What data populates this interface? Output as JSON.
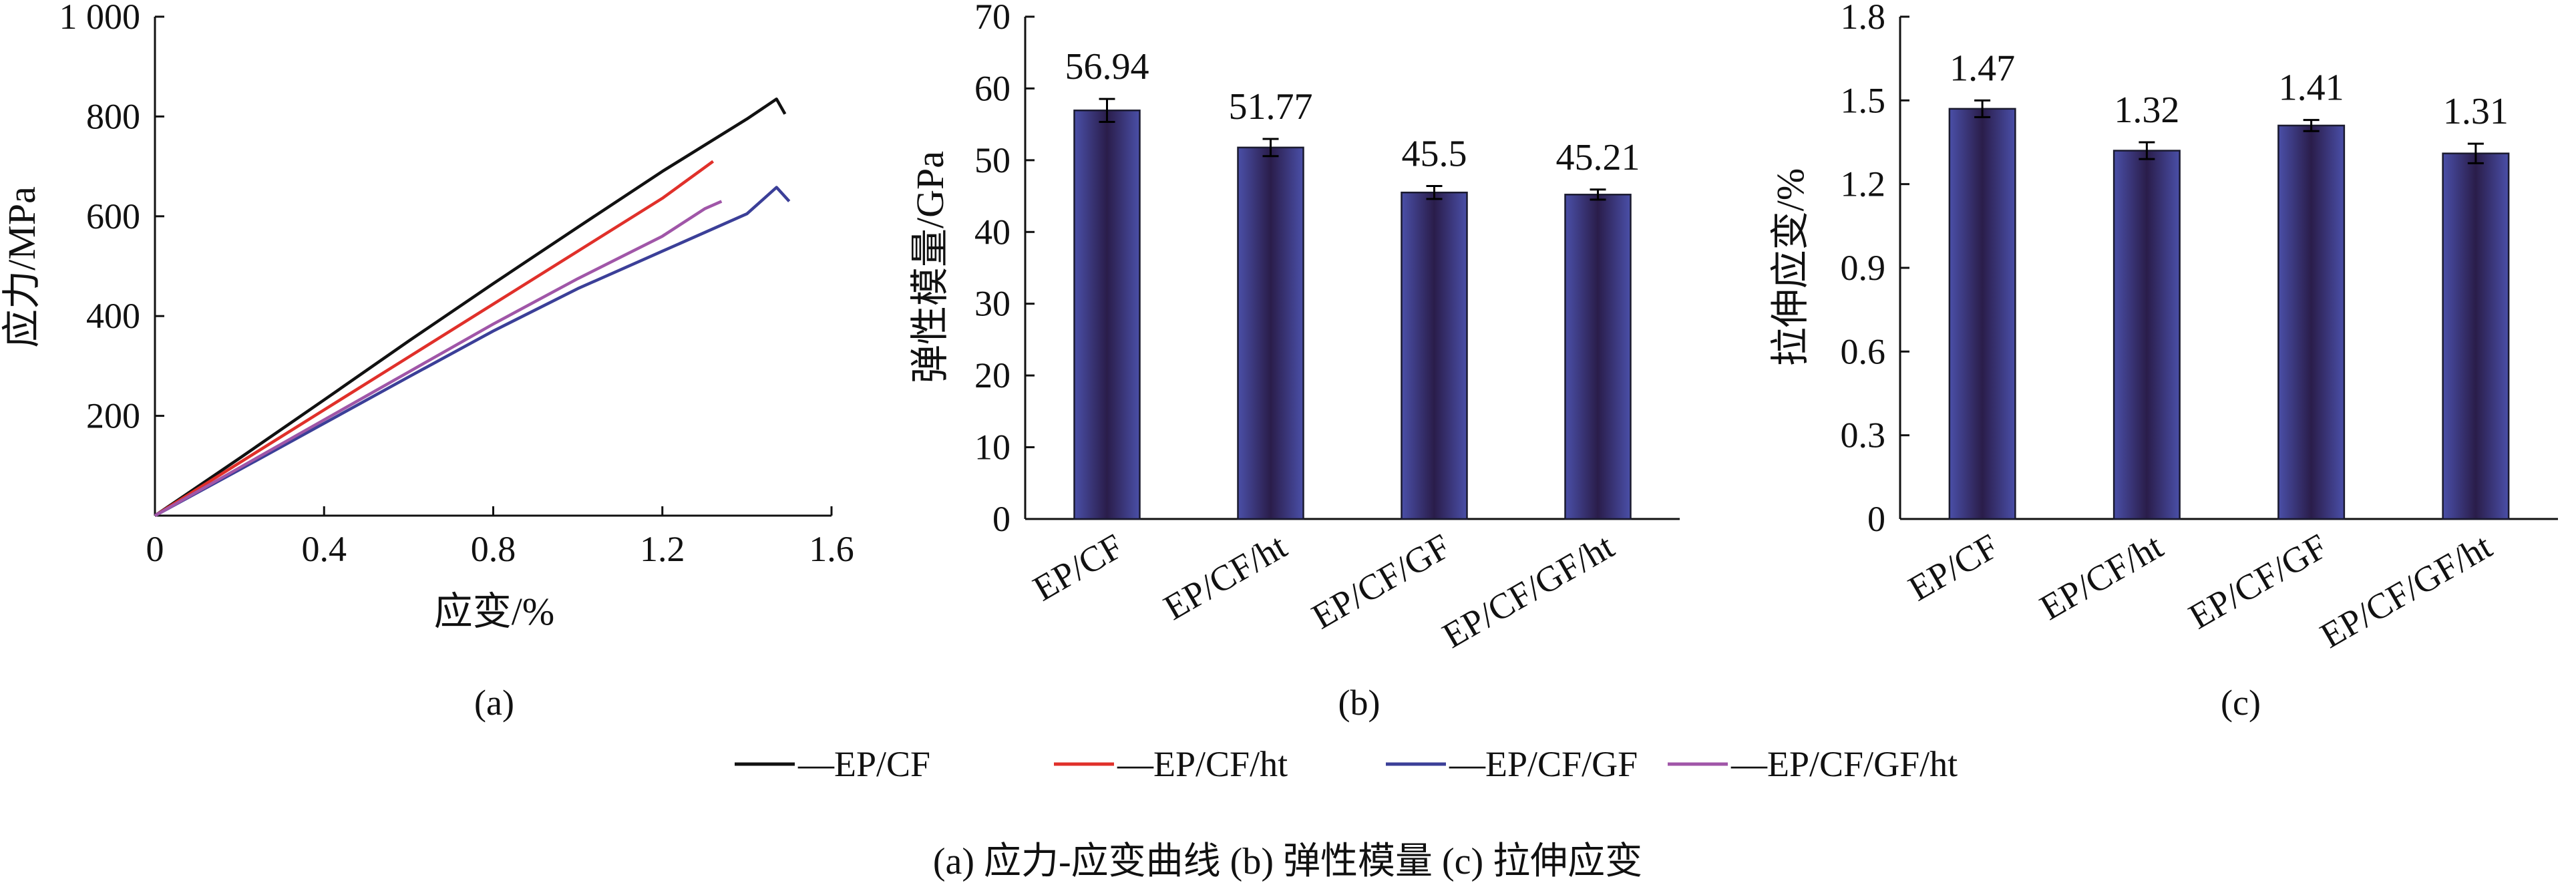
{
  "chart_data": [
    {
      "type": "line",
      "panel_label": "(a)",
      "xlabel": "应变/%",
      "ylabel": "应力/MPa",
      "xlim": [
        0,
        1.6
      ],
      "ylim": [
        0,
        1000
      ],
      "xticks": [
        0,
        0.4,
        0.8,
        1.2,
        1.6
      ],
      "xtick_labels": [
        "0",
        "0.4",
        "0.8",
        "1.2",
        "1.6"
      ],
      "yticks": [
        200,
        400,
        600,
        800,
        1000
      ],
      "ytick_labels": [
        "200",
        "400",
        "600",
        "800",
        "1 000"
      ],
      "grid": false,
      "series": [
        {
          "name": "—EP/CF",
          "color": "#111111",
          "x": [
            0,
            0.2,
            0.4,
            0.6,
            0.8,
            1.0,
            1.2,
            1.4,
            1.47,
            1.49
          ],
          "y": [
            0,
            115,
            232,
            350,
            465,
            578,
            690,
            795,
            835,
            805
          ]
        },
        {
          "name": "—EP/CF/ht",
          "color": "#e0302a",
          "x": [
            0,
            0.2,
            0.4,
            0.6,
            0.8,
            1.0,
            1.2,
            1.32
          ],
          "y": [
            0,
            106,
            212,
            318,
            424,
            530,
            636,
            710
          ]
        },
        {
          "name": "—EP/CF/GF",
          "color": "#3b3f98",
          "x": [
            0,
            0.2,
            0.4,
            0.6,
            0.8,
            1.0,
            1.2,
            1.4,
            1.47,
            1.5
          ],
          "y": [
            0,
            92,
            185,
            278,
            370,
            455,
            530,
            605,
            658,
            630
          ]
        },
        {
          "name": "—EP/CF/GF/ht",
          "color": "#a056a8",
          "x": [
            0,
            0.2,
            0.4,
            0.6,
            0.8,
            1.0,
            1.2,
            1.3,
            1.34
          ],
          "y": [
            0,
            96,
            192,
            288,
            384,
            475,
            560,
            615,
            630
          ]
        }
      ]
    },
    {
      "type": "bar",
      "panel_label": "(b)",
      "xlabel": "",
      "ylabel": "弹性模量/GPa",
      "ylim": [
        0,
        70
      ],
      "yticks": [
        0,
        10,
        20,
        30,
        40,
        50,
        60,
        70
      ],
      "ytick_labels": [
        "0",
        "10",
        "20",
        "30",
        "40",
        "50",
        "60",
        "70"
      ],
      "categories": [
        "EP/CF",
        "EP/CF/ht",
        "EP/CF/GF",
        "EP/CF/GF/ht"
      ],
      "values": [
        56.94,
        51.77,
        45.5,
        45.21
      ],
      "value_labels": [
        "56.94",
        "51.77",
        "45.5",
        "45.21"
      ],
      "errors": [
        1.6,
        1.2,
        0.9,
        0.7
      ],
      "grid": false
    },
    {
      "type": "bar",
      "panel_label": "(c)",
      "xlabel": "",
      "ylabel": "拉伸应变/%",
      "ylim": [
        0,
        1.8
      ],
      "yticks": [
        0,
        0.3,
        0.6,
        0.9,
        1.2,
        1.5,
        1.8
      ],
      "ytick_labels": [
        "0",
        "0.3",
        "0.6",
        "0.9",
        "1.2",
        "1.5",
        "1.8"
      ],
      "categories": [
        "EP/CF",
        "EP/CF/ht",
        "EP/CF/GF",
        "EP/CF/GF/ht"
      ],
      "values": [
        1.47,
        1.32,
        1.41,
        1.31
      ],
      "value_labels": [
        "1.47",
        "1.32",
        "1.41",
        "1.31"
      ],
      "errors": [
        0.03,
        0.03,
        0.02,
        0.035
      ],
      "grid": false
    }
  ],
  "legend": {
    "placement": "bottom",
    "entries": [
      {
        "label": "—EP/CF",
        "color": "#111111"
      },
      {
        "label": "—EP/CF/ht",
        "color": "#e0302a"
      },
      {
        "label": "—EP/CF/GF",
        "color": "#3b3f98"
      },
      {
        "label": "—EP/CF/GF/ht",
        "color": "#a056a8"
      }
    ]
  },
  "caption": "(a) 应力-应变曲线    (b) 弹性模量    (c) 拉伸应变",
  "colors": {
    "bar_center": "#2a1d4a",
    "bar_edge": "#4a4fa8",
    "axis": "#111111"
  }
}
